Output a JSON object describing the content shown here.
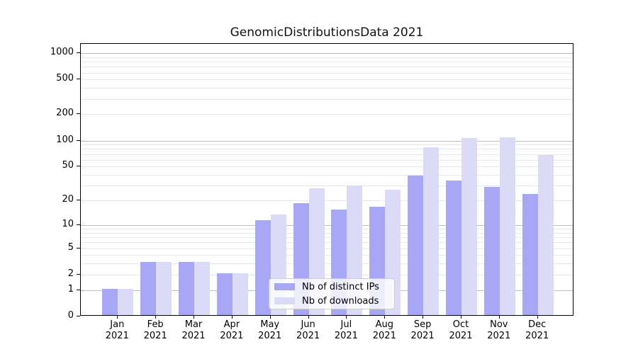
{
  "chart_data": {
    "type": "bar",
    "title": "GenomicDistributionsData 2021",
    "x": {
      "categories": [
        "Jan",
        "Feb",
        "Mar",
        "Apr",
        "May",
        "Jun",
        "Jul",
        "Aug",
        "Sep",
        "Oct",
        "Nov",
        "Dec"
      ],
      "year_label": "2021"
    },
    "series": [
      {
        "name": "Nb of distinct IPs",
        "color": "#a7a7f5",
        "values": [
          1,
          3,
          3,
          2,
          11,
          18,
          15,
          16,
          38,
          33,
          28,
          23
        ]
      },
      {
        "name": "Nb of downloads",
        "color": "#dbdbf8",
        "values": [
          1,
          3,
          3,
          2,
          13,
          27,
          29,
          26,
          80,
          103,
          105,
          66
        ]
      }
    ],
    "yscale": "log1p",
    "yticks": [
      0,
      1,
      2,
      5,
      10,
      20,
      50,
      100,
      200,
      500,
      1000
    ],
    "ylim": [
      0,
      1273
    ],
    "grid": {
      "on": true,
      "major_color": "#bdbdbd",
      "minor_color": "#e8e8e8"
    },
    "legend_position": "lower-center",
    "axis_color": "#000000",
    "background_color": "#ffffff"
  }
}
